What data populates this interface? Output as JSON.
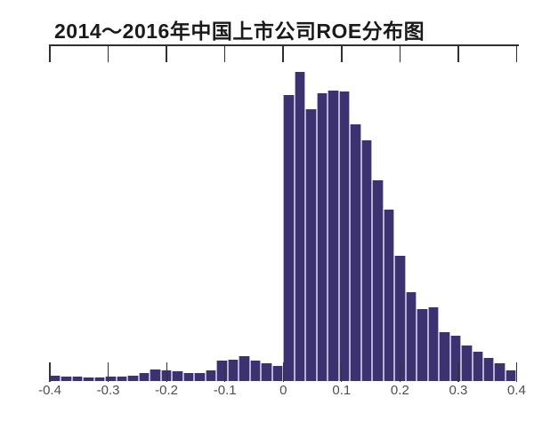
{
  "title": "2014～2016年中国上市公司ROE分布图",
  "colors": {
    "bar_fill": "#3b326f",
    "bar_gap": "#b7b1d8",
    "axis_line": "#2f2f2f",
    "bottom_tick": "#35343e",
    "tick_label": "#4f4f4f",
    "title_text": "#1a1a1a",
    "background": "#ffffff"
  },
  "x_axis": {
    "tick_labels": [
      "-0.4",
      "-0.3",
      "-0.2",
      "-0.1",
      "0",
      "0.1",
      "0.2",
      "0.3",
      "0.4"
    ],
    "tick_values": [
      -0.4,
      -0.3,
      -0.2,
      -0.1,
      0,
      0.1,
      0.2,
      0.3,
      0.4
    ]
  },
  "chart_data": {
    "type": "bar",
    "subtype": "histogram",
    "title": "2014～2016年中国上市公司ROE分布图",
    "xlabel": "",
    "ylabel": "",
    "xlim": [
      -0.4,
      0.4
    ],
    "grid": false,
    "legend": "none",
    "y_axis_shown": false,
    "bin_start": -0.4,
    "bin_width": 0.019,
    "bin_count": 42,
    "values_unit": "relative frequency, percent of tallest bar (no y-axis shown in source)",
    "values_pct_of_max": [
      2.0,
      1.5,
      1.5,
      1.4,
      1.3,
      1.5,
      1.5,
      1.8,
      2.6,
      4.0,
      3.5,
      3.3,
      2.6,
      2.8,
      3.7,
      6.7,
      7.0,
      8.2,
      6.7,
      6.0,
      5.0,
      92.5,
      100,
      87.8,
      93.0,
      94.0,
      93.5,
      83.1,
      77.8,
      64.9,
      55.5,
      40.6,
      28.7,
      23.3,
      23.9,
      15.9,
      14.9,
      11.5,
      9.5,
      7.6,
      5.9,
      3.7
    ],
    "shape_notes": "tiny flat left tail; small bump peaking near ROE -0.07; dip just below 0; huge spike from 0 peaking at 0.02-0.04; monotonic decline toward 0.4 with slight step near 0.26"
  }
}
